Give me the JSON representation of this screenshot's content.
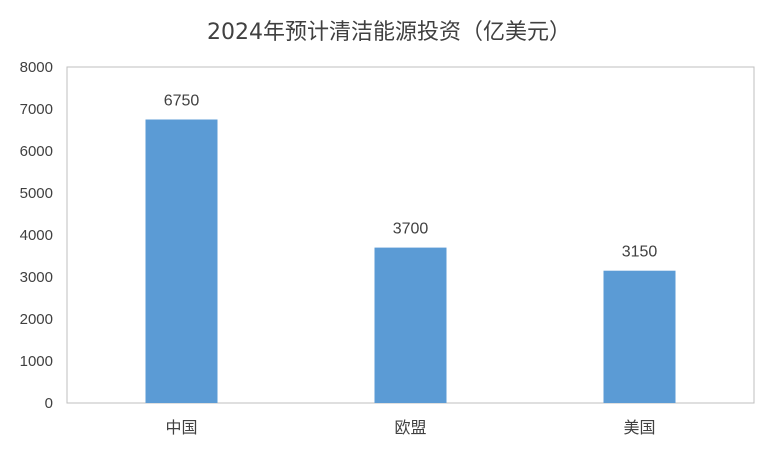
{
  "chart_data": {
    "type": "bar",
    "title": "2024年预计清洁能源投资（亿美元）",
    "categories": [
      "中国",
      "欧盟",
      "美国"
    ],
    "values": [
      6750,
      3700,
      3150
    ],
    "ylim": [
      0,
      8000
    ],
    "yticks": [
      "0",
      "1000",
      "2000",
      "3000",
      "4000",
      "5000",
      "6000",
      "7000",
      "8000"
    ],
    "data_labels": [
      "6750",
      "3700",
      "3150"
    ],
    "xlabel": "",
    "ylabel": "",
    "grid": false,
    "legend": "none",
    "bar_color": "#5b9bd5",
    "axis_color": "#bfbfbf"
  }
}
